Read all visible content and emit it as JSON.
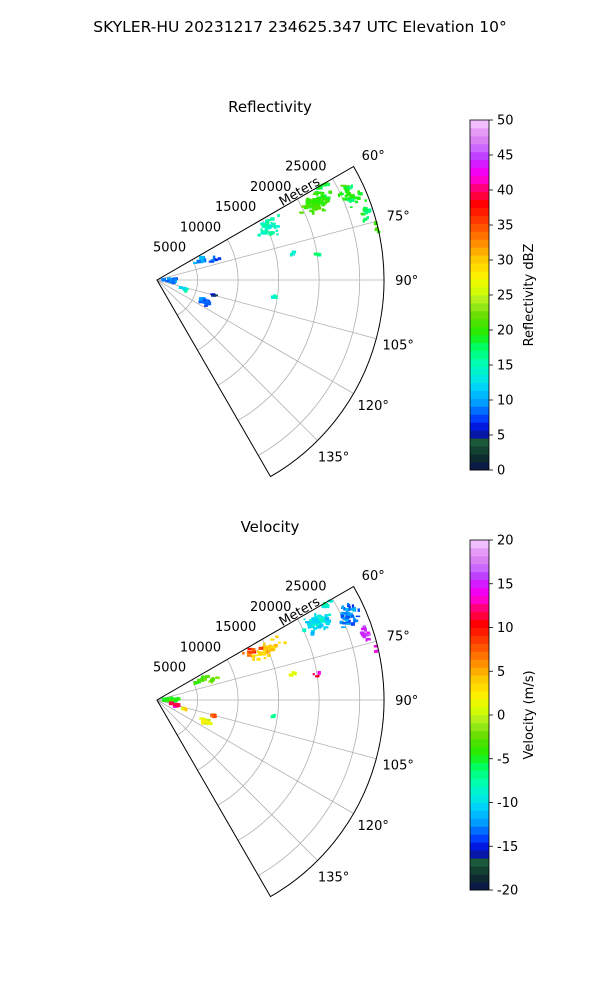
{
  "figure": {
    "title": "SKYLER-HU  20231217  234625.347 UTC Elevation 10°"
  },
  "chart_data": [
    {
      "type": "polar-sector",
      "title": "Reflectivity",
      "radial_label": "Meters",
      "radial_ticks": [
        "5000",
        "10000",
        "15000",
        "20000",
        "25000"
      ],
      "radial_values": [
        5000,
        10000,
        15000,
        20000,
        25000
      ],
      "r_max": 28000,
      "angle_range_deg": [
        60,
        150
      ],
      "angle_ticks_deg": [
        60,
        75,
        90,
        105,
        120,
        135
      ],
      "angle_tick_labels": [
        "60°",
        "75°",
        "90°",
        "105°",
        "120°",
        "135°"
      ],
      "grid": true,
      "colorbar": {
        "label": "Reflectivity dBZ",
        "range": [
          0,
          50
        ],
        "ticks": [
          "0",
          "5",
          "10",
          "15",
          "20",
          "25",
          "30",
          "35",
          "40",
          "45",
          "50"
        ],
        "tick_values": [
          0,
          5,
          10,
          15,
          20,
          25,
          30,
          35,
          40,
          45,
          50
        ]
      },
      "echo_clusters": [
        {
          "az": 64,
          "r": 22000,
          "daz": 4,
          "dr": 2500,
          "n": 75,
          "value": 20
        },
        {
          "az": 60,
          "r": 24000,
          "daz": 2,
          "dr": 2000,
          "n": 15,
          "value": 19
        },
        {
          "az": 66,
          "r": 26000,
          "daz": 4,
          "dr": 2000,
          "n": 45,
          "value": 19
        },
        {
          "az": 72,
          "r": 27000,
          "daz": 3,
          "dr": 900,
          "n": 16,
          "value": 18
        },
        {
          "az": 77,
          "r": 28000,
          "daz": 2,
          "dr": 600,
          "n": 10,
          "value": 20
        },
        {
          "az": 65,
          "r": 15000,
          "daz": 5,
          "dr": 2500,
          "n": 40,
          "value": 15
        },
        {
          "az": 81,
          "r": 20000,
          "daz": 1,
          "dr": 500,
          "n": 4,
          "value": 16
        },
        {
          "az": 79,
          "r": 17000,
          "daz": 1,
          "dr": 500,
          "n": 3,
          "value": 15
        },
        {
          "az": 66,
          "r": 6000,
          "daz": 4,
          "dr": 1500,
          "n": 12,
          "value": 10
        },
        {
          "az": 70,
          "r": 7500,
          "daz": 3,
          "dr": 1500,
          "n": 10,
          "value": 8
        },
        {
          "az": 90,
          "r": 1800,
          "daz": 14,
          "dr": 1200,
          "n": 30,
          "value": 9
        },
        {
          "az": 108,
          "r": 3500,
          "daz": 4,
          "dr": 700,
          "n": 8,
          "value": 14
        },
        {
          "az": 114,
          "r": 6500,
          "daz": 5,
          "dr": 1000,
          "n": 25,
          "value": 8
        },
        {
          "az": 105,
          "r": 7200,
          "daz": 2,
          "dr": 700,
          "n": 6,
          "value": 5
        },
        {
          "az": 98,
          "r": 14500,
          "daz": 1,
          "dr": 400,
          "n": 4,
          "value": 14
        }
      ]
    },
    {
      "type": "polar-sector",
      "title": "Velocity",
      "radial_label": "Meters",
      "radial_ticks": [
        "5000",
        "10000",
        "15000",
        "20000",
        "25000"
      ],
      "radial_values": [
        5000,
        10000,
        15000,
        20000,
        25000
      ],
      "r_max": 28000,
      "angle_range_deg": [
        60,
        150
      ],
      "angle_ticks_deg": [
        60,
        75,
        90,
        105,
        120,
        135
      ],
      "angle_tick_labels": [
        "60°",
        "75°",
        "90°",
        "105°",
        "120°",
        "135°"
      ],
      "grid": true,
      "colorbar": {
        "label": "Velocity (m/s)",
        "range": [
          -20,
          20
        ],
        "ticks": [
          "-20",
          "-15",
          "-10",
          "-5",
          "0",
          "5",
          "10",
          "15",
          "20"
        ],
        "tick_values": [
          -20,
          -15,
          -10,
          -5,
          0,
          5,
          10,
          15,
          20
        ]
      },
      "echo_clusters": [
        {
          "az": 64,
          "r": 22000,
          "daz": 4,
          "dr": 2500,
          "n": 75,
          "value": -10
        },
        {
          "az": 60,
          "r": 24000,
          "daz": 2,
          "dr": 2000,
          "n": 15,
          "value": -9
        },
        {
          "az": 56,
          "r": 19500,
          "daz": 1.5,
          "dr": 800,
          "n": 6,
          "value": 14
        },
        {
          "az": 66,
          "r": 26000,
          "daz": 4,
          "dr": 2000,
          "n": 45,
          "value": -13
        },
        {
          "az": 72,
          "r": 27000,
          "daz": 3,
          "dr": 900,
          "n": 16,
          "value": 15
        },
        {
          "az": 77,
          "r": 28000,
          "daz": 2,
          "dr": 600,
          "n": 10,
          "value": 14
        },
        {
          "az": 65,
          "r": 15000,
          "daz": 5,
          "dr": 2500,
          "n": 40,
          "value": 4
        },
        {
          "az": 63,
          "r": 13000,
          "daz": 3,
          "dr": 1500,
          "n": 12,
          "value": 8
        },
        {
          "az": 81,
          "r": 20000,
          "daz": 1,
          "dr": 500,
          "n": 4,
          "value": 12
        },
        {
          "az": 79,
          "r": 17000,
          "daz": 1,
          "dr": 500,
          "n": 3,
          "value": 1
        },
        {
          "az": 66,
          "r": 6000,
          "daz": 4,
          "dr": 1500,
          "n": 12,
          "value": -3
        },
        {
          "az": 70,
          "r": 7500,
          "daz": 3,
          "dr": 1500,
          "n": 10,
          "value": -2
        },
        {
          "az": 90,
          "r": 1800,
          "daz": 14,
          "dr": 1200,
          "n": 30,
          "value": -4
        },
        {
          "az": 105,
          "r": 2500,
          "daz": 6,
          "dr": 900,
          "n": 10,
          "value": 12
        },
        {
          "az": 108,
          "r": 3500,
          "daz": 4,
          "dr": 700,
          "n": 8,
          "value": 3
        },
        {
          "az": 114,
          "r": 6500,
          "daz": 5,
          "dr": 1000,
          "n": 25,
          "value": 1
        },
        {
          "az": 105,
          "r": 7200,
          "daz": 2,
          "dr": 700,
          "n": 6,
          "value": 8
        },
        {
          "az": 98,
          "r": 14500,
          "daz": 1,
          "dr": 400,
          "n": 4,
          "value": -6
        }
      ]
    }
  ]
}
